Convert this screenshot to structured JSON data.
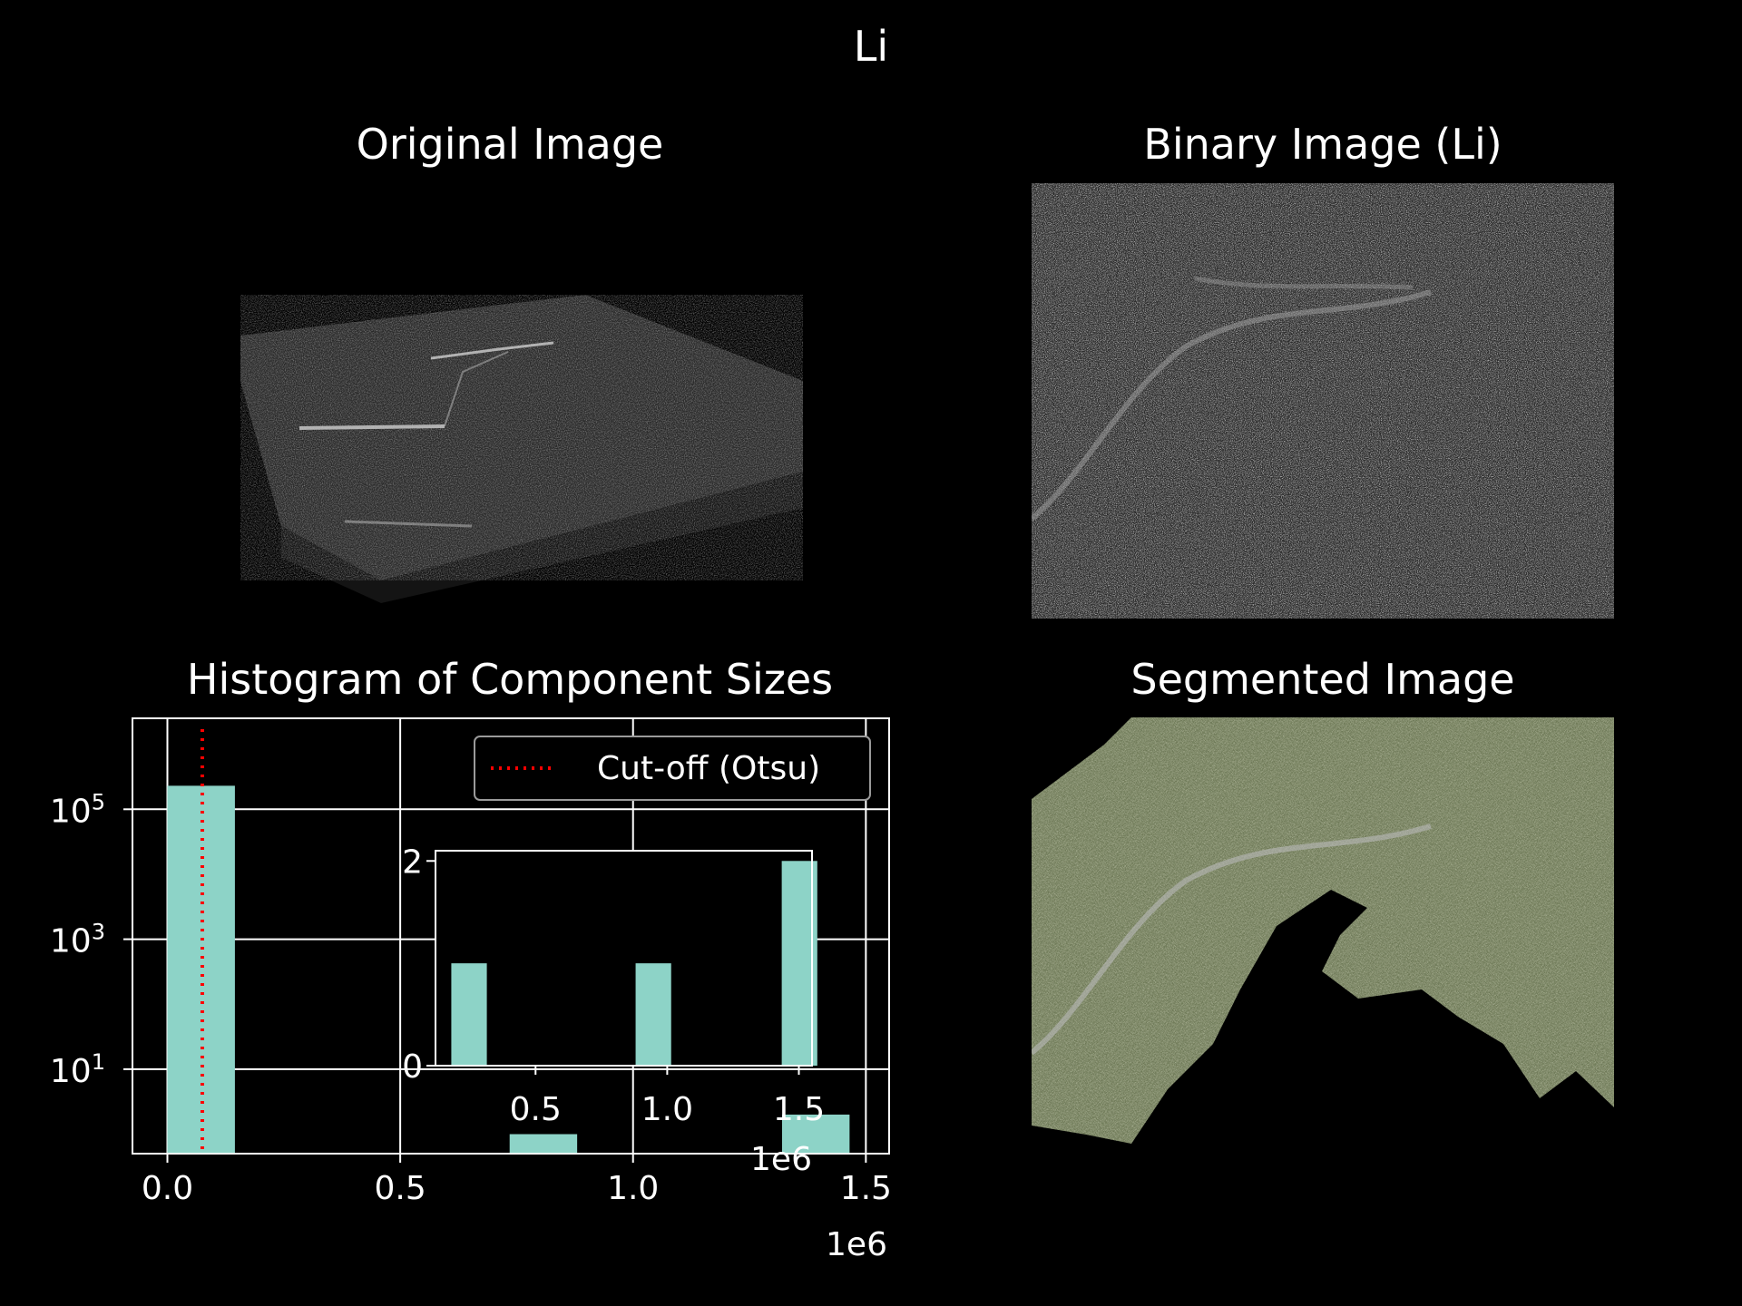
{
  "figure": {
    "suptitle": "Li",
    "panels": {
      "original": {
        "title": "Original Image"
      },
      "binary": {
        "title": "Binary Image (Li)"
      },
      "histogram": {
        "title": "Histogram of Component Sizes"
      },
      "segmented": {
        "title": "Segmented Image"
      }
    }
  },
  "chart_data": [
    {
      "type": "bar",
      "title": "Histogram of Component Sizes",
      "xlabel": "",
      "ylabel": "",
      "x_scale_label": "1e6",
      "y_scale": "log",
      "xlim": [
        -75000,
        1550000
      ],
      "ylim_log10": [
        -0.3,
        6.4
      ],
      "bar_color": "#8dd3c7",
      "bars": [
        {
          "x0": 0,
          "x1": 145000,
          "value": 230000
        },
        {
          "x0": 735000,
          "x1": 880000,
          "value": 1
        },
        {
          "x0": 1320000,
          "x1": 1465000,
          "value": 2
        }
      ],
      "x_ticks": [
        {
          "v": 0,
          "label": "0.0"
        },
        {
          "v": 500000,
          "label": "0.5"
        },
        {
          "v": 1000000,
          "label": "1.0"
        },
        {
          "v": 1500000,
          "label": "1.5"
        }
      ],
      "y_ticks": [
        {
          "exp": 1,
          "base": "10",
          "sup": "1"
        },
        {
          "exp": 3,
          "base": "10",
          "sup": "3"
        },
        {
          "exp": 5,
          "base": "10",
          "sup": "5"
        }
      ],
      "grid": true,
      "cutoff": {
        "x": 75000,
        "color": "#ff0000",
        "style": "dotted",
        "label": "Cut-off (Otsu)"
      },
      "legend_placement": "top-right"
    },
    {
      "type": "bar",
      "title": "",
      "inset": true,
      "x_scale_label": "1e6",
      "xlim": [
        120000,
        1550000
      ],
      "ylim": [
        0,
        2.1
      ],
      "bar_color": "#8dd3c7",
      "bars": [
        {
          "x0": 180000,
          "x1": 315000,
          "value": 1
        },
        {
          "x0": 880000,
          "x1": 1015000,
          "value": 1
        },
        {
          "x0": 1435000,
          "x1": 1570000,
          "value": 2
        }
      ],
      "x_ticks": [
        {
          "v": 500000,
          "label": "0.5"
        },
        {
          "v": 1000000,
          "label": "1.0"
        },
        {
          "v": 1500000,
          "label": "1.5"
        }
      ],
      "y_ticks": [
        {
          "v": 0,
          "label": "0"
        },
        {
          "v": 2,
          "label": "2"
        }
      ]
    }
  ]
}
